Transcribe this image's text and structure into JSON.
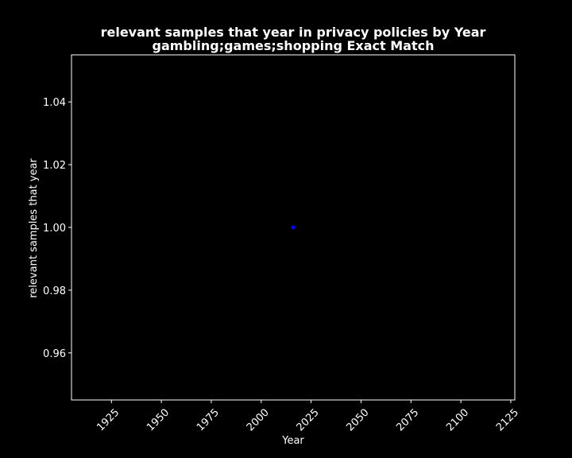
{
  "chart_data": {
    "type": "scatter",
    "title_line1": "relevant samples that year in privacy policies by Year",
    "title_line2": "gambling;games;shopping Exact Match",
    "xlabel": "Year",
    "ylabel": "relevant samples that year",
    "xlim": [
      1905,
      2127
    ],
    "ylim": [
      0.945,
      1.055
    ],
    "xticks": [
      1925,
      1950,
      1975,
      2000,
      2025,
      2050,
      2075,
      2100,
      2125
    ],
    "xtick_labels": [
      "1925",
      "1950",
      "1975",
      "2000",
      "2025",
      "2050",
      "2075",
      "2100",
      "2125"
    ],
    "yticks": [
      0.96,
      0.98,
      1.0,
      1.02,
      1.04
    ],
    "ytick_labels": [
      "0.96",
      "0.98",
      "1.00",
      "1.02",
      "1.04"
    ],
    "points": [
      {
        "x": 2016,
        "y": 1.0
      }
    ],
    "point_color": "#0000ff",
    "background": "#000000",
    "foreground": "#ffffff",
    "grid": false,
    "legend": "none"
  }
}
